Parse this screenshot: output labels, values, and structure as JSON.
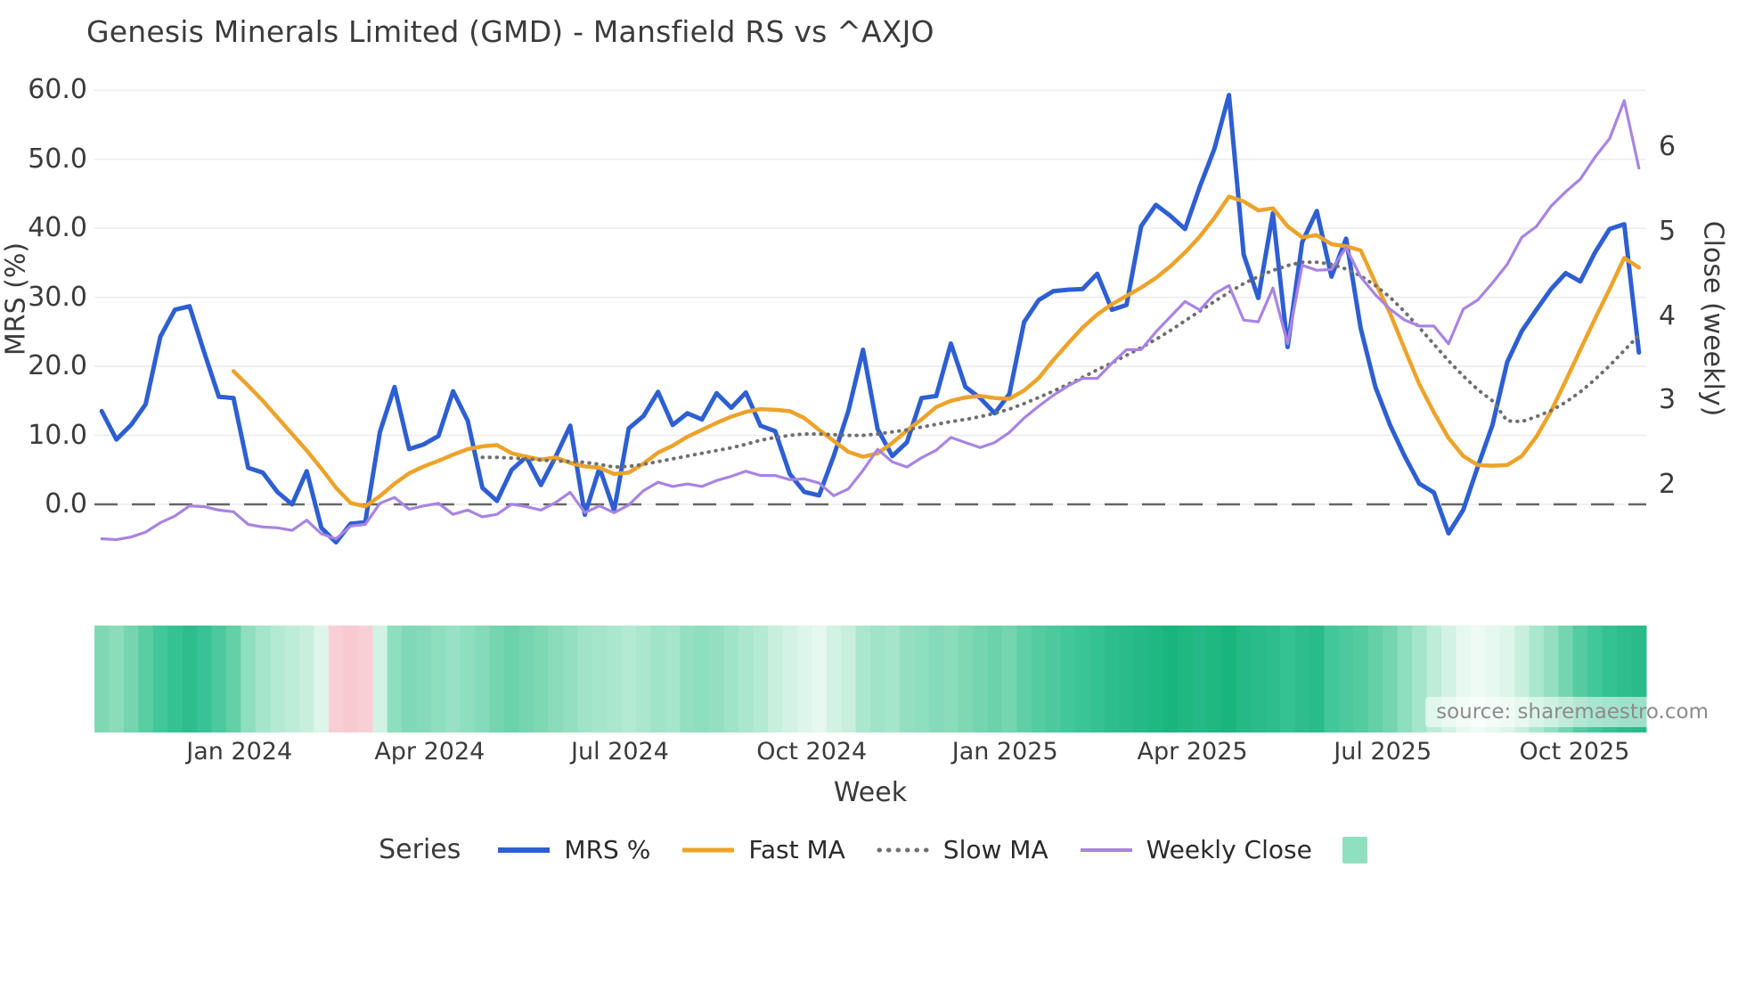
{
  "title": "Genesis Minerals Limited (GMD) - Mansfield RS vs ^AXJO",
  "source": "source: sharemaestro.com",
  "axes": {
    "left_label": "MRS (%)",
    "right_label": "Close (weekly)",
    "x_label": "Week",
    "left_ticks": [
      {
        "label": "60.0",
        "value": 60
      },
      {
        "label": "50.0",
        "value": 50
      },
      {
        "label": "40.0",
        "value": 40
      },
      {
        "label": "30.0",
        "value": 30
      },
      {
        "label": "20.0",
        "value": 20
      },
      {
        "label": "10.0",
        "value": 10
      },
      {
        "label": "0.0",
        "value": 0
      }
    ],
    "right_ticks": [
      {
        "label": "6",
        "value": 6
      },
      {
        "label": "5",
        "value": 5
      },
      {
        "label": "4",
        "value": 4
      },
      {
        "label": "3",
        "value": 3
      },
      {
        "label": "2",
        "value": 2
      }
    ],
    "x_ticks": [
      {
        "label": "Jan 2024",
        "week": 9.4
      },
      {
        "label": "Apr 2024",
        "week": 22.4
      },
      {
        "label": "Jul 2024",
        "week": 35.4
      },
      {
        "label": "Oct 2024",
        "week": 48.5
      },
      {
        "label": "Jan 2025",
        "week": 61.7
      },
      {
        "label": "Apr 2025",
        "week": 74.5
      },
      {
        "label": "Jul 2025",
        "week": 87.5
      },
      {
        "label": "Oct 2025",
        "week": 100.6
      }
    ]
  },
  "legend": {
    "series_label": "Series",
    "items": [
      {
        "label": "MRS %",
        "color": "#2d5fd3",
        "style": "solid"
      },
      {
        "label": "Fast MA",
        "color": "#eda32a",
        "style": "solid"
      },
      {
        "label": "Slow MA",
        "color": "#6f6f6f",
        "style": "dotted"
      },
      {
        "label": "Weekly Close",
        "color": "#a884e3",
        "style": "solid"
      }
    ],
    "heatmap_swatch_color": "#8fe0c0"
  },
  "chart_data": {
    "type": "line",
    "title": "Genesis Minerals Limited (GMD) - Mansfield RS vs ^AXJO",
    "xlabel": "Week",
    "ylabel_left": "MRS (%)",
    "ylabel_right": "Close (weekly)",
    "x_unit": "weekly index, approx Oct 2023 to Nov 2025",
    "n_points": 106,
    "left_ylim": [
      -8,
      62
    ],
    "right_ylim": [
      0.9,
      6.7
    ],
    "grid": "horizontal, light",
    "zero_line": {
      "value": 0,
      "axis": "left",
      "style": "dashed",
      "color": "#666666"
    },
    "legend_position": "bottom center",
    "series": [
      {
        "name": "MRS %",
        "axis": "left",
        "color": "#2d5fd3",
        "width": 5,
        "dash": "solid",
        "start_week": 0,
        "values": [
          13.5,
          9.4,
          11.5,
          14.5,
          24.3,
          28.2,
          28.7,
          22.0,
          15.6,
          15.4,
          5.3,
          4.6,
          1.8,
          0.0,
          4.8,
          -3.4,
          -5.5,
          -2.8,
          -2.6,
          10.5,
          17.0,
          8.0,
          8.7,
          9.9,
          16.4,
          12.1,
          2.4,
          0.5,
          5.0,
          6.9,
          2.8,
          6.9,
          11.4,
          -1.5,
          5.3,
          -0.9,
          11.0,
          12.8,
          16.3,
          11.5,
          13.2,
          12.3,
          16.1,
          14.0,
          16.2,
          11.4,
          10.6,
          4.4,
          1.8,
          1.3,
          7.0,
          13.5,
          22.4,
          10.9,
          7.0,
          9.0,
          15.4,
          15.7,
          23.3,
          17.0,
          15.4,
          13.2,
          16.0,
          26.4,
          29.6,
          30.9,
          31.1,
          31.2,
          33.4,
          28.2,
          28.9,
          40.3,
          43.4,
          41.8,
          39.9,
          46.0,
          51.5,
          59.3,
          36.2,
          29.9,
          42.2,
          22.8,
          38.0,
          42.5,
          33.0,
          38.5,
          25.5,
          17.0,
          11.5,
          7.0,
          3.0,
          1.7,
          -4.2,
          -0.8,
          5.5,
          11.5,
          20.6,
          25.1,
          28.2,
          31.2,
          33.5,
          32.3,
          36.5,
          39.9,
          40.6,
          22.0
        ]
      },
      {
        "name": "Fast MA",
        "axis": "left",
        "color": "#eda32a",
        "width": 4.5,
        "dash": "solid",
        "start_week": 9,
        "values": [
          19.3,
          17.2,
          15.0,
          12.6,
          10.2,
          7.8,
          5.2,
          2.4,
          0.2,
          -0.3,
          1.2,
          3.0,
          4.5,
          5.5,
          6.3,
          7.2,
          8.0,
          8.4,
          8.6,
          7.4,
          6.9,
          6.5,
          6.8,
          6.0,
          5.5,
          5.3,
          4.4,
          4.6,
          5.9,
          7.5,
          8.5,
          9.8,
          10.8,
          11.8,
          12.7,
          13.4,
          13.8,
          13.7,
          13.5,
          12.5,
          10.8,
          9.2,
          7.6,
          6.9,
          7.4,
          8.9,
          10.7,
          12.3,
          14.1,
          15.0,
          15.5,
          15.7,
          15.4,
          15.3,
          16.5,
          18.3,
          20.9,
          23.3,
          25.6,
          27.5,
          29.0,
          30.2,
          31.4,
          32.8,
          34.5,
          36.5,
          38.8,
          41.5,
          44.6,
          43.9,
          42.6,
          42.9,
          40.3,
          38.7,
          39.0,
          37.7,
          37.4,
          36.8,
          32.1,
          27.7,
          22.5,
          17.4,
          13.3,
          9.6,
          7.0,
          5.7,
          5.6,
          5.7,
          7.0,
          9.8,
          13.5,
          17.9,
          22.4,
          26.9,
          31.2,
          35.7,
          34.3
        ]
      },
      {
        "name": "Slow MA",
        "axis": "left",
        "color": "#6f6f6f",
        "width": 4,
        "dash": "dotted",
        "start_week": 26,
        "values": [
          6.8,
          6.8,
          6.7,
          6.6,
          6.4,
          6.3,
          6.2,
          6.1,
          5.8,
          5.4,
          5.5,
          5.8,
          6.2,
          6.6,
          7.0,
          7.4,
          7.8,
          8.2,
          8.7,
          9.3,
          9.7,
          10.0,
          10.2,
          10.2,
          10.1,
          10.0,
          10.0,
          10.2,
          10.5,
          10.8,
          11.2,
          11.6,
          12.0,
          12.3,
          12.7,
          13.2,
          13.8,
          14.6,
          15.5,
          16.4,
          17.4,
          18.4,
          19.5,
          20.5,
          21.6,
          22.7,
          23.9,
          25.2,
          26.6,
          28.0,
          29.4,
          30.7,
          32.0,
          33.0,
          33.9,
          34.6,
          35.1,
          35.1,
          34.8,
          34.1,
          33.1,
          31.7,
          30.0,
          27.9,
          25.6,
          23.2,
          20.8,
          18.6,
          16.6,
          15.0,
          12.1,
          12.0,
          12.7,
          13.6,
          14.8,
          16.3,
          18.1,
          20.1,
          22.3,
          24.5
        ]
      },
      {
        "name": "Weekly Close",
        "axis": "right",
        "color": "#a884e3",
        "width": 3.2,
        "dash": "solid",
        "start_week": 0,
        "values": [
          1.36,
          1.35,
          1.38,
          1.44,
          1.55,
          1.63,
          1.75,
          1.74,
          1.7,
          1.68,
          1.53,
          1.5,
          1.49,
          1.46,
          1.58,
          1.42,
          1.36,
          1.51,
          1.53,
          1.78,
          1.85,
          1.71,
          1.75,
          1.78,
          1.65,
          1.7,
          1.62,
          1.65,
          1.77,
          1.74,
          1.7,
          1.79,
          1.91,
          1.67,
          1.75,
          1.67,
          1.76,
          1.93,
          2.03,
          1.98,
          2.01,
          1.98,
          2.05,
          2.1,
          2.16,
          2.11,
          2.11,
          2.06,
          2.07,
          2.02,
          1.87,
          1.95,
          2.17,
          2.42,
          2.27,
          2.21,
          2.32,
          2.41,
          2.56,
          2.5,
          2.44,
          2.5,
          2.62,
          2.79,
          2.93,
          3.06,
          3.17,
          3.26,
          3.26,
          3.44,
          3.6,
          3.6,
          3.81,
          3.99,
          4.17,
          4.07,
          4.26,
          4.36,
          3.95,
          3.93,
          4.33,
          3.67,
          4.6,
          4.54,
          4.55,
          4.81,
          4.46,
          4.25,
          4.08,
          3.95,
          3.88,
          3.88,
          3.67,
          4.08,
          4.19,
          4.39,
          4.61,
          4.93,
          5.06,
          5.3,
          5.47,
          5.62,
          5.88,
          6.1,
          6.55,
          5.75
        ]
      }
    ],
    "heatmap": {
      "name": "weekly strength heatmap strip",
      "palette": "green = strong, pink = weak",
      "colors": [
        "#7fd8b4",
        "#8adcba",
        "#75d5b0",
        "#5bcda4",
        "#41c79a",
        "#35c293",
        "#2ebd8d",
        "#38c295",
        "#4cc99e",
        "#63d0a8",
        "#8edec0",
        "#a5e5cc",
        "#b4e9d3",
        "#bdecd8",
        "#c8efdd",
        "#ddf5ea",
        "#f9cfd6",
        "#f8c9d1",
        "#f9cfd6",
        "#d1f2e4",
        "#8edec0",
        "#7fd8b7",
        "#85dabb",
        "#8edec0",
        "#99e1c6",
        "#8edec0",
        "#85dabb",
        "#75d5b0",
        "#6bd2ab",
        "#75d5b0",
        "#7fd8b4",
        "#8adcba",
        "#94dfc2",
        "#9fe3c8",
        "#a5e5cc",
        "#aae7ce",
        "#b4e9d3",
        "#aae7ce",
        "#9fe3c8",
        "#a5e5cc",
        "#94dfc2",
        "#8edec0",
        "#94dfc2",
        "#9fe3c8",
        "#aae7ce",
        "#b4e9d3",
        "#c8efdd",
        "#d1f2e4",
        "#ddf5ea",
        "#e6f8f0",
        "#d1f2e4",
        "#c8efdd",
        "#aae7ce",
        "#9fe3c8",
        "#a5e5cc",
        "#94dfc2",
        "#8edec0",
        "#85dabb",
        "#8adcba",
        "#7fd8b4",
        "#75d5b0",
        "#6bd2ab",
        "#75d5b0",
        "#60cfa7",
        "#55cba1",
        "#4cc99e",
        "#41c79a",
        "#3bc597",
        "#35c293",
        "#2ebd8d",
        "#29bb8a",
        "#24b986",
        "#1fb782",
        "#1ab57f",
        "#1fb782",
        "#24b986",
        "#1fb782",
        "#1ab57f",
        "#24b986",
        "#29bb8a",
        "#2ebd8d",
        "#35c293",
        "#2ebd8d",
        "#29bb8a",
        "#41c79a",
        "#4cc99e",
        "#55cba1",
        "#63d0a8",
        "#75d5b0",
        "#8edec0",
        "#a5e5cc",
        "#bdecd8",
        "#d1f2e4",
        "#e6f8f0",
        "#eefaf4",
        "#e6f8f0",
        "#ddf5ea",
        "#c8efdd",
        "#aae7ce",
        "#94dfc2",
        "#75d5b0",
        "#55cba1",
        "#41c79a",
        "#35c293",
        "#2ebd8d",
        "#29bb8a"
      ]
    }
  }
}
